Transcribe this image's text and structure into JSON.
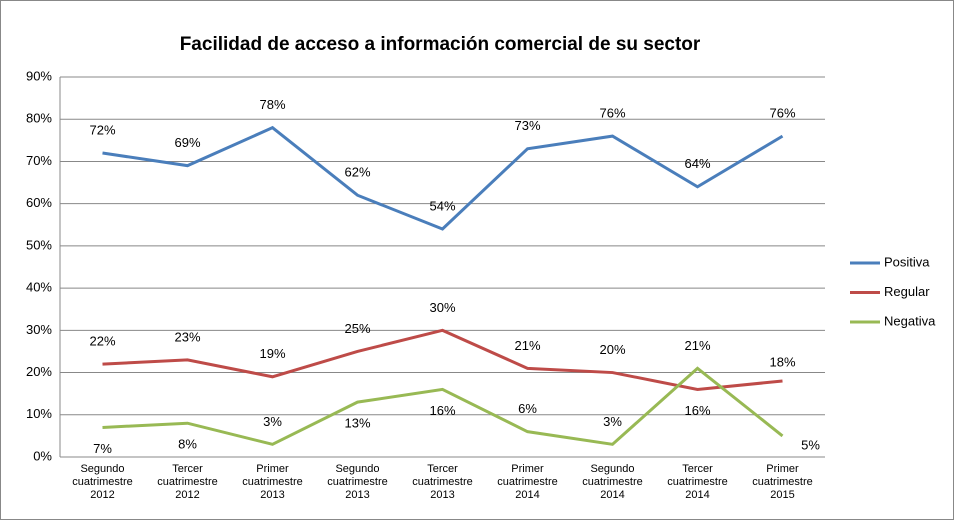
{
  "chart_data": {
    "type": "line",
    "title": "Facilidad de acceso a información comercial de su sector",
    "categories": [
      "Segundo cuatrimestre 2012",
      "Tercer cuatrimestre 2012",
      "Primer cuatrimestre 2013",
      "Segundo cuatrimestre 2013",
      "Tercer cuatrimestre 2013",
      "Primer cuatrimestre 2014",
      "Segundo cuatrimestre 2014",
      "Tercer cuatrimestre 2014",
      "Primer cuatrimestre 2015"
    ],
    "series": [
      {
        "name": "Positiva",
        "color": "#4a7ebb",
        "values": [
          72,
          69,
          78,
          62,
          54,
          73,
          76,
          64,
          76
        ],
        "value_labels": [
          "72%",
          "69%",
          "78%",
          "62%",
          "54%",
          "73%",
          "76%",
          "64%",
          "76%"
        ]
      },
      {
        "name": "Regular",
        "color": "#be4b48",
        "values": [
          22,
          23,
          19,
          25,
          30,
          21,
          20,
          16,
          18
        ],
        "value_labels": [
          "22%",
          "23%",
          "19%",
          "25%",
          "30%",
          "21%",
          "20%",
          "16%",
          "18%"
        ]
      },
      {
        "name": "Negativa",
        "color": "#98b954",
        "values": [
          7,
          8,
          3,
          13,
          16,
          6,
          3,
          21,
          5
        ],
        "value_labels": [
          "7%",
          "8%",
          "3%",
          "13%",
          "16%",
          "6%",
          "3%",
          "21%",
          "5%"
        ]
      }
    ],
    "ylim": [
      0,
      90
    ],
    "yticks": [
      {
        "value": 0,
        "label": "0%"
      },
      {
        "value": 10,
        "label": "10%"
      },
      {
        "value": 20,
        "label": "20%"
      },
      {
        "value": 30,
        "label": "30%"
      },
      {
        "value": 40,
        "label": "40%"
      },
      {
        "value": 50,
        "label": "50%"
      },
      {
        "value": 60,
        "label": "60%"
      },
      {
        "value": 70,
        "label": "70%"
      },
      {
        "value": 80,
        "label": "80%"
      },
      {
        "value": 90,
        "label": "90%"
      }
    ],
    "grid": true,
    "legend": "right"
  }
}
